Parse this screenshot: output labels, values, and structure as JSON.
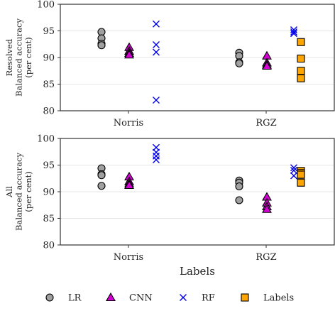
{
  "chart_data": [
    {
      "type": "scatter",
      "panel": "top",
      "row_label": "Resolved",
      "ylabel": [
        "Balanced accuracy",
        "(per cent)"
      ],
      "ylim": [
        80,
        100
      ],
      "yticks": [
        80,
        85,
        90,
        95,
        100
      ],
      "categories": [
        "Norris",
        "RGZ"
      ],
      "grid": "horizontal",
      "series": [
        {
          "name": "LR",
          "values": {
            "Norris": [
              94.8,
              93.6,
              92.6,
              92.3
            ],
            "RGZ": [
              90.9,
              90.3,
              89.1,
              88.9
            ]
          }
        },
        {
          "name": "CNN",
          "values": {
            "Norris": [
              91.9,
              91.2,
              90.8,
              90.5
            ],
            "RGZ": [
              90.3,
              89.0,
              88.6,
              88.4
            ]
          }
        },
        {
          "name": "RF",
          "values": {
            "Norris": [
              96.3,
              92.4,
              91.0,
              82.0
            ],
            "RGZ": [
              95.2,
              94.8,
              94.5
            ]
          }
        },
        {
          "name": "Labels",
          "values": {
            "Norris": [],
            "RGZ": [
              92.9,
              89.8,
              87.5,
              86.1
            ]
          }
        }
      ]
    },
    {
      "type": "scatter",
      "panel": "bottom",
      "row_label": "All",
      "ylabel": [
        "Balanced accuracy",
        "(per cent)"
      ],
      "ylim": [
        80,
        100
      ],
      "yticks": [
        80,
        85,
        90,
        95,
        100
      ],
      "categories": [
        "Norris",
        "RGZ"
      ],
      "xlabel": "Labels",
      "grid": "horizontal",
      "series": [
        {
          "name": "LR",
          "values": {
            "Norris": [
              94.4,
              93.3,
              93.1,
              91.1
            ],
            "RGZ": [
              92.1,
              91.7,
              91.0,
              88.4
            ]
          }
        },
        {
          "name": "CNN",
          "values": {
            "Norris": [
              92.8,
              91.9,
              91.5,
              91.2
            ],
            "RGZ": [
              89.0,
              87.9,
              87.2,
              86.7
            ]
          }
        },
        {
          "name": "RF",
          "values": {
            "Norris": [
              98.3,
              97.4,
              96.7,
              96.0
            ],
            "RGZ": [
              94.5,
              94.0,
              93.0
            ]
          }
        },
        {
          "name": "Labels",
          "values": {
            "Norris": [],
            "RGZ": [
              93.9,
              93.5,
              93.2,
              91.7
            ]
          }
        }
      ]
    }
  ],
  "legend": {
    "placement": "bottom",
    "items": [
      {
        "name": "LR",
        "marker": "circle",
        "color": "#a0a0a0"
      },
      {
        "name": "CNN",
        "marker": "triangle",
        "color": "#d400d4"
      },
      {
        "name": "RF",
        "marker": "x",
        "color": "#0000ee"
      },
      {
        "name": "Labels",
        "marker": "square",
        "color": "#ffa500"
      }
    ]
  },
  "colors": {
    "LR": "#a0a0a0",
    "CNN": "#d400d4",
    "RF": "#0000ee",
    "Labels": "#ffa500",
    "edge": "#000000",
    "grid": "#e6e6e6"
  }
}
